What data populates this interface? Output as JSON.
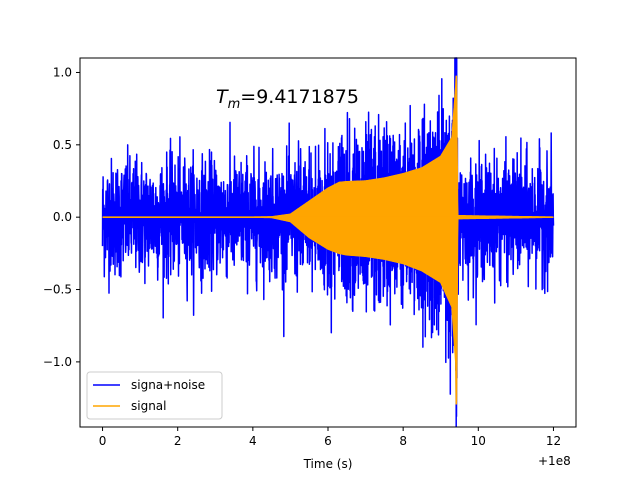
{
  "chart_data": {
    "type": "line",
    "title": "",
    "xlabel": "Time (s)",
    "ylabel": "",
    "xlim": [
      -0.6,
      12.6
    ],
    "ylim": [
      -1.45,
      1.1
    ],
    "x_offset_label": "+1e8",
    "x_ticks": [
      0,
      2,
      4,
      6,
      8,
      10,
      12
    ],
    "x_tick_labels": [
      "0",
      "2",
      "4",
      "6",
      "8",
      "10",
      "12"
    ],
    "y_ticks": [
      1.0,
      0.5,
      0.0,
      -0.5,
      -1.0
    ],
    "y_tick_labels": [
      "1.0",
      "0.5",
      "0.0",
      "−0.5",
      "−1.0"
    ],
    "grid": false,
    "legend_position": "lower-left",
    "annotation": {
      "prefix": "T",
      "subscript": "m",
      "value_text": "=9.4171875"
    },
    "series": [
      {
        "name": "signa+noise",
        "color": "#0000ff",
        "description_points": {
          "x_range": [
            0,
            12
          ],
          "noise_envelope": {
            "typical": 0.45,
            "max": 1.0,
            "min": -0.98
          }
        }
      },
      {
        "name": "signal",
        "color": "#ffa500",
        "envelope": {
          "x": [
            0,
            4.0,
            4.5,
            5.0,
            5.5,
            6.0,
            6.3,
            6.5,
            7.0,
            7.5,
            8.0,
            8.5,
            9.0,
            9.3,
            9.4,
            9.4171875,
            9.45,
            12.0
          ],
          "upper": [
            0,
            0,
            0.002,
            0.02,
            0.11,
            0.2,
            0.24,
            0.245,
            0.25,
            0.27,
            0.3,
            0.34,
            0.42,
            0.55,
            0.9,
            1.0,
            0.01,
            0
          ],
          "lower": [
            0,
            0,
            -0.002,
            -0.03,
            -0.14,
            -0.22,
            -0.25,
            -0.26,
            -0.27,
            -0.29,
            -0.32,
            -0.37,
            -0.45,
            -0.62,
            -1.0,
            -1.38,
            -0.01,
            0
          ]
        }
      }
    ]
  }
}
